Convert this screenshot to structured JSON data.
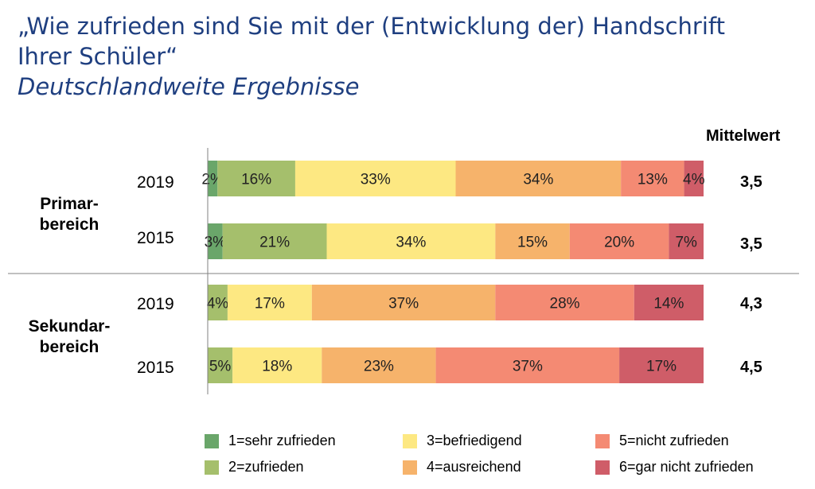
{
  "title": {
    "line1": "„Wie zufrieden sind Sie mit der (Entwicklung der) Handschrift",
    "line2": "Ihrer Schüler“",
    "subtitle": "Deutschlandweite Ergebnisse"
  },
  "mean_header": "Mittelwert",
  "groups": [
    {
      "line1": "Primar-",
      "line2": "bereich"
    },
    {
      "line1": "Sekundar-",
      "line2": "bereich"
    }
  ],
  "colors": [
    "#6aa66a",
    "#a5bf6c",
    "#fde882",
    "#f6b36b",
    "#f48a73",
    "#cf5d68"
  ],
  "chart_data": {
    "type": "bar",
    "orientation": "horizontal",
    "stacked": "100%",
    "categories": [
      "2019",
      "2015",
      "2019",
      "2015"
    ],
    "groups": [
      "Primar-bereich",
      "Primar-bereich",
      "Sekundar-bereich",
      "Sekundar-bereich"
    ],
    "series": [
      {
        "name": "1=sehr zufrieden",
        "values": [
          2,
          3,
          0,
          0
        ]
      },
      {
        "name": "2=zufrieden",
        "values": [
          16,
          21,
          4,
          5
        ]
      },
      {
        "name": "3=befriedigend",
        "values": [
          33,
          34,
          17,
          18
        ]
      },
      {
        "name": "4=ausreichend",
        "values": [
          34,
          15,
          37,
          23
        ]
      },
      {
        "name": "5=nicht zufrieden",
        "values": [
          13,
          20,
          28,
          37
        ]
      },
      {
        "name": "6=gar nicht zufrieden",
        "values": [
          4,
          7,
          14,
          17
        ]
      }
    ],
    "labels": [
      [
        "2%",
        "3%",
        "",
        ""
      ],
      [
        "16%",
        "21%",
        "4%",
        "5%"
      ],
      [
        "33%",
        "34%",
        "17%",
        "18%"
      ],
      [
        "34%",
        "15%",
        "37%",
        "23%"
      ],
      [
        "13%",
        "20%",
        "28%",
        "37%"
      ],
      [
        "4%",
        "7%",
        "14%",
        "17%"
      ]
    ],
    "means": [
      "3,5",
      "3,5",
      "4,3",
      "4,5"
    ],
    "legend_position": "bottom"
  }
}
